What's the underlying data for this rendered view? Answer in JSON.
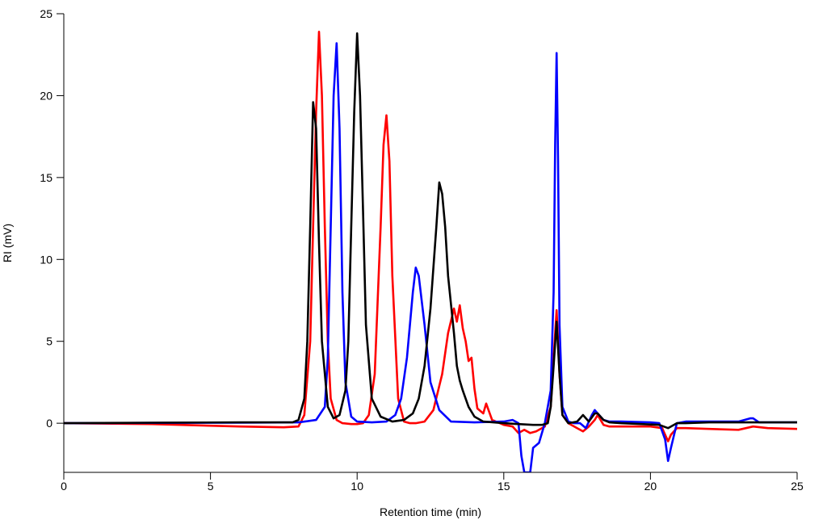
{
  "chart_data": {
    "type": "line",
    "title": "",
    "xlabel": "Retention time (min)",
    "ylabel": "RI (mV)",
    "xlim": [
      0,
      25
    ],
    "ylim": [
      -3,
      25
    ],
    "x_ticks": [
      0,
      5,
      10,
      15,
      20,
      25
    ],
    "x_tick_labels": [
      "0",
      "5",
      "10",
      "15",
      "20",
      "25"
    ],
    "y_ticks": [
      0,
      5,
      10,
      15,
      20,
      25
    ],
    "y_tick_labels": [
      "0",
      "5",
      "10",
      "15",
      "20",
      "25"
    ],
    "grid": false,
    "legend": "none",
    "series": [
      {
        "color": "#ff0000",
        "x": [
          0,
          3,
          6,
          7.5,
          8.0,
          8.2,
          8.4,
          8.5,
          8.6,
          8.7,
          8.8,
          8.9,
          9.0,
          9.1,
          9.3,
          9.5,
          9.8,
          10.0,
          10.2,
          10.4,
          10.6,
          10.8,
          10.9,
          11.0,
          11.1,
          11.2,
          11.4,
          11.6,
          11.8,
          12.0,
          12.3,
          12.6,
          12.9,
          13.1,
          13.3,
          13.4,
          13.5,
          13.6,
          13.7,
          13.8,
          13.9,
          14.0,
          14.1,
          14.3,
          14.4,
          14.6,
          14.8,
          15.0,
          15.3,
          15.5,
          15.7,
          15.9,
          16.1,
          16.4,
          16.6,
          16.7,
          16.8,
          16.9,
          17.0,
          17.2,
          17.5,
          17.7,
          17.9,
          18.1,
          18.2,
          18.4,
          18.6,
          19,
          20,
          20.4,
          20.6,
          20.7,
          20.9,
          21.2,
          22,
          23,
          23.5,
          24,
          25
        ],
        "y": [
          0,
          -0.05,
          -0.2,
          -0.25,
          -0.2,
          0.5,
          5,
          12,
          19,
          23.9,
          20,
          12,
          5,
          1.5,
          0.2,
          0,
          -0.05,
          -0.05,
          0,
          0.5,
          3,
          12,
          17,
          18.8,
          16,
          9,
          1.5,
          0.1,
          0,
          0,
          0.1,
          0.8,
          3,
          5.5,
          7,
          6.2,
          7.2,
          5.8,
          5,
          3.8,
          4,
          2.1,
          0.9,
          0.6,
          1.2,
          0.2,
          0.05,
          -0.1,
          -0.2,
          -0.6,
          -0.4,
          -0.6,
          -0.5,
          -0.2,
          1,
          4,
          6.9,
          3,
          0.5,
          0,
          -0.3,
          -0.5,
          -0.2,
          0.2,
          0.5,
          -0.1,
          -0.2,
          -0.2,
          -0.2,
          -0.3,
          -1.1,
          -0.7,
          -0.3,
          -0.3,
          -0.35,
          -0.4,
          -0.2,
          -0.3,
          -0.35
        ]
      },
      {
        "color": "#0000ff",
        "x": [
          0,
          3,
          6,
          8.0,
          8.6,
          8.9,
          9.0,
          9.1,
          9.2,
          9.3,
          9.4,
          9.5,
          9.6,
          9.8,
          10.0,
          10.5,
          11.0,
          11.3,
          11.5,
          11.7,
          11.9,
          12.0,
          12.1,
          12.3,
          12.5,
          12.8,
          13.2,
          14,
          15.0,
          15.3,
          15.5,
          15.6,
          15.7,
          15.9,
          16.0,
          16.2,
          16.4,
          16.6,
          16.7,
          16.75,
          16.8,
          16.85,
          16.9,
          17.0,
          17.2,
          17.4,
          17.6,
          17.8,
          18.0,
          18.1,
          18.2,
          18.4,
          18.6,
          19,
          20.0,
          20.3,
          20.5,
          20.6,
          20.7,
          20.9,
          21.2,
          22,
          23,
          23.4,
          23.5,
          23.7,
          24,
          25
        ],
        "y": [
          0,
          0.02,
          0.03,
          0.05,
          0.2,
          1,
          4,
          12,
          20,
          23.2,
          18,
          8,
          2.5,
          0.4,
          0.1,
          0.05,
          0.1,
          0.5,
          1.5,
          4,
          8,
          9.5,
          9,
          6,
          2.5,
          0.8,
          0.1,
          0.05,
          0.1,
          0.2,
          0,
          -2,
          -3,
          -3,
          -1.5,
          -1.2,
          0,
          2,
          8,
          17,
          22.6,
          16,
          6,
          1,
          0.1,
          0,
          0,
          -0.3,
          0.5,
          0.8,
          0.6,
          0.2,
          0.1,
          0.1,
          0.05,
          0,
          -1,
          -2.3,
          -1.5,
          0,
          0.1,
          0.1,
          0.1,
          0.3,
          0.3,
          0.05,
          0.05,
          0.05
        ]
      },
      {
        "color": "#000000",
        "x": [
          0,
          3,
          6,
          7.8,
          8.0,
          8.2,
          8.3,
          8.4,
          8.5,
          8.6,
          8.7,
          8.8,
          9.0,
          9.2,
          9.4,
          9.6,
          9.7,
          9.8,
          9.9,
          10.0,
          10.1,
          10.2,
          10.3,
          10.5,
          10.8,
          11.2,
          11.6,
          11.9,
          12.1,
          12.3,
          12.5,
          12.7,
          12.8,
          12.9,
          13.0,
          13.1,
          13.3,
          13.4,
          13.5,
          13.6,
          13.8,
          14.0,
          14.3,
          15,
          15.5,
          16.0,
          16.3,
          16.5,
          16.6,
          16.7,
          16.8,
          16.9,
          17.0,
          17.2,
          17.5,
          17.7,
          17.9,
          18.1,
          18.2,
          18.4,
          18.6,
          19,
          20.3,
          20.6,
          20.9,
          21.2,
          22,
          23,
          23.5,
          24,
          25
        ],
        "y": [
          0,
          0.03,
          0.05,
          0.05,
          0.2,
          1.5,
          5,
          12,
          19.6,
          18,
          11,
          5,
          1,
          0.3,
          0.5,
          2,
          5,
          12,
          19,
          23.8,
          20,
          13,
          6,
          1.5,
          0.4,
          0.1,
          0.2,
          0.6,
          1.5,
          3.5,
          7,
          12,
          14.7,
          14,
          12,
          9,
          5.5,
          3.5,
          2.6,
          2,
          1,
          0.4,
          0.1,
          0,
          -0.05,
          -0.1,
          -0.1,
          0,
          1,
          3.5,
          6.2,
          3,
          0.5,
          0,
          0.1,
          0.5,
          0.1,
          0.6,
          0.6,
          0.2,
          0.05,
          0,
          -0.1,
          -0.3,
          0,
          0,
          0.05,
          0.05,
          0.05,
          0.05,
          0.05
        ]
      }
    ]
  }
}
